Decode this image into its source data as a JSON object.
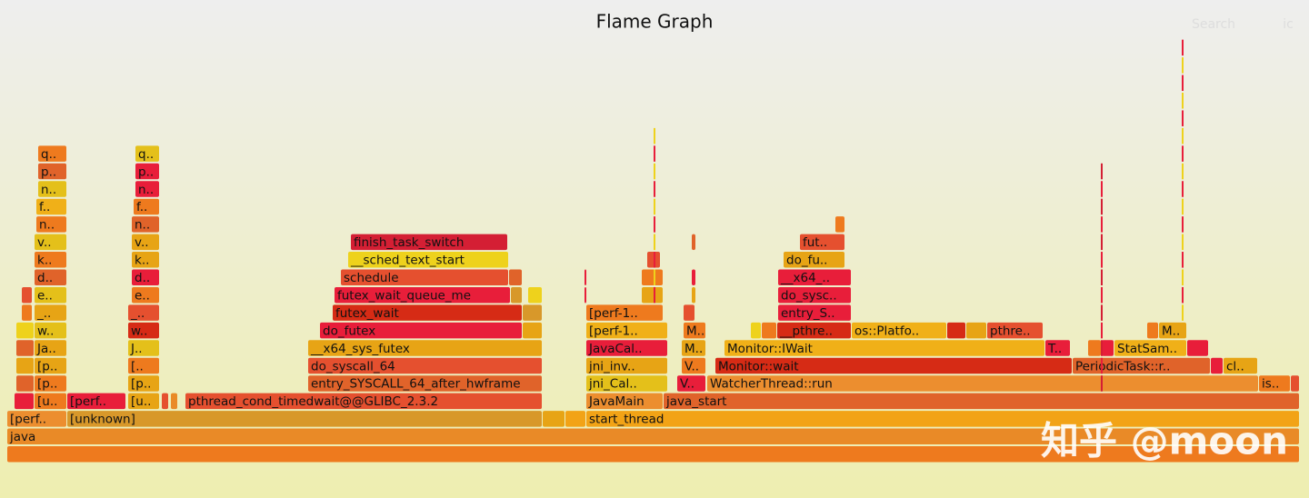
{
  "title": "Flame Graph",
  "search": "Search",
  "ic": "ic",
  "watermark": "知乎 @moon",
  "frames": [
    {
      "label": "java"
    },
    {
      "label": "[perf.."
    },
    {
      "label": "[unknown]"
    },
    {
      "label": "start_thread"
    },
    {
      "label": "[u.."
    },
    {
      "label": "[perf.."
    },
    {
      "label": "[u.."
    },
    {
      "label": "pthread_cond_timedwait@@GLIBC_2.3.2"
    },
    {
      "label": "JavaMain"
    },
    {
      "label": "java_start"
    },
    {
      "label": "[p.."
    },
    {
      "label": "[p.."
    },
    {
      "label": "entry_SYSCALL_64_after_hwframe"
    },
    {
      "label": "jni_Cal.."
    },
    {
      "label": "V.."
    },
    {
      "label": "WatcherThread::run"
    },
    {
      "label": "is.."
    },
    {
      "label": "[p.."
    },
    {
      "label": "[.."
    },
    {
      "label": "do_syscall_64"
    },
    {
      "label": "jni_inv.."
    },
    {
      "label": "V.."
    },
    {
      "label": "Monitor::wait"
    },
    {
      "label": "PeriodicTask::r.."
    },
    {
      "label": "cl.."
    },
    {
      "label": "Ja.."
    },
    {
      "label": "J.."
    },
    {
      "label": "__x64_sys_futex"
    },
    {
      "label": "JavaCal.."
    },
    {
      "label": "M.."
    },
    {
      "label": "Monitor::IWait"
    },
    {
      "label": "T.."
    },
    {
      "label": "StatSam.."
    },
    {
      "label": "w.."
    },
    {
      "label": "w.."
    },
    {
      "label": "do_futex"
    },
    {
      "label": "[perf-1.."
    },
    {
      "label": "M.."
    },
    {
      "label": "__pthre.."
    },
    {
      "label": "os::Platfo.."
    },
    {
      "label": "pthre.."
    },
    {
      "label": "M.."
    },
    {
      "label": "_.."
    },
    {
      "label": "_.."
    },
    {
      "label": "futex_wait"
    },
    {
      "label": "[perf-1.."
    },
    {
      "label": "entry_S.."
    },
    {
      "label": "e.."
    },
    {
      "label": "e.."
    },
    {
      "label": "futex_wait_queue_me"
    },
    {
      "label": "do_sysc.."
    },
    {
      "label": "d.."
    },
    {
      "label": "d.."
    },
    {
      "label": "schedule"
    },
    {
      "label": "__x64_.."
    },
    {
      "label": "k.."
    },
    {
      "label": "k.."
    },
    {
      "label": "__sched_text_start"
    },
    {
      "label": "do_fu.."
    },
    {
      "label": "v.."
    },
    {
      "label": "v.."
    },
    {
      "label": "finish_task_switch"
    },
    {
      "label": "fut.."
    },
    {
      "label": "n.."
    },
    {
      "label": "n.."
    },
    {
      "label": "f.."
    },
    {
      "label": "f.."
    },
    {
      "label": "n.."
    },
    {
      "label": "n.."
    },
    {
      "label": "p.."
    },
    {
      "label": "p.."
    },
    {
      "label": "q.."
    },
    {
      "label": "q.."
    }
  ]
}
